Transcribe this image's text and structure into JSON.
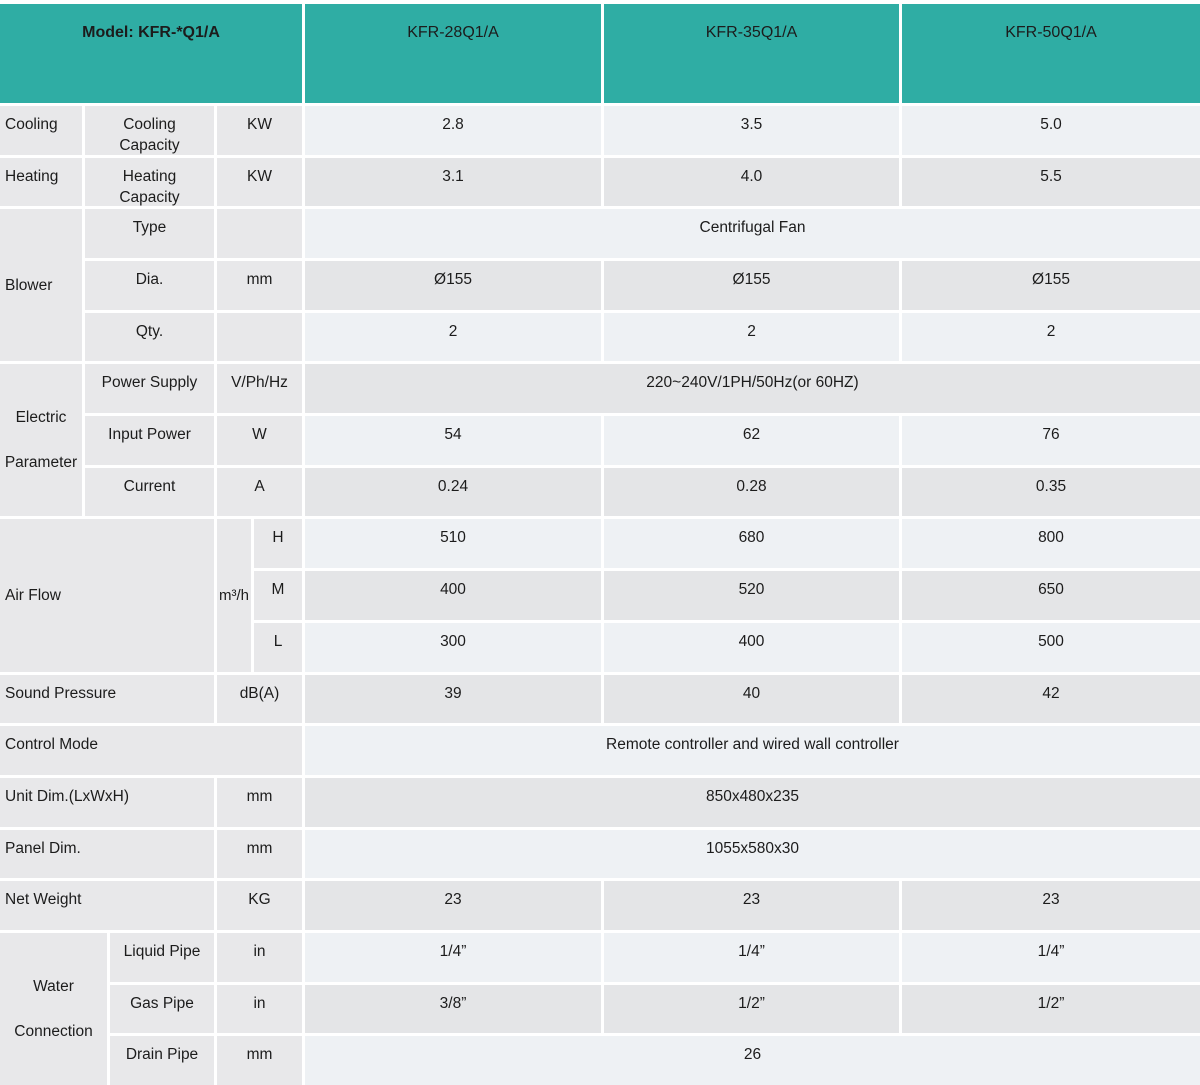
{
  "header": {
    "model_label": "Model: KFR-*Q1/A",
    "models": [
      "KFR-28Q1/A",
      "KFR-35Q1/A",
      "KFR-50Q1/A"
    ]
  },
  "rows": {
    "cooling": {
      "group": "Cooling",
      "label": "Cooling Capacity",
      "unit": "KW",
      "values": [
        "2.8",
        "3.5",
        "5.0"
      ]
    },
    "heating": {
      "group": "Heating",
      "label": "Heating Capacity",
      "unit": "KW",
      "values": [
        "3.1",
        "4.0",
        "5.5"
      ]
    },
    "blower": {
      "group": "Blower",
      "type": {
        "label": "Type",
        "value": "Centrifugal Fan"
      },
      "dia": {
        "label": "Dia.",
        "unit": "mm",
        "values": [
          "Ø155",
          "Ø155",
          "Ø155"
        ]
      },
      "qty": {
        "label": "Qty.",
        "values": [
          "2",
          "2",
          "2"
        ]
      }
    },
    "electric": {
      "group": "Electric Parameter",
      "power_supply": {
        "label": "Power Supply",
        "unit": "V/Ph/Hz",
        "value": "220~240V/1PH/50Hz(or 60HZ)"
      },
      "input_power": {
        "label": "Input Power",
        "unit": "W",
        "values": [
          "54",
          "62",
          "76"
        ]
      },
      "current": {
        "label": "Current",
        "unit": "A",
        "values": [
          "0.24",
          "0.28",
          "0.35"
        ]
      }
    },
    "air_flow": {
      "group": "Air Flow",
      "unit": "m³/h",
      "h": {
        "label": "H",
        "values": [
          "510",
          "680",
          "800"
        ]
      },
      "m": {
        "label": "M",
        "values": [
          "400",
          "520",
          "650"
        ]
      },
      "l": {
        "label": "L",
        "values": [
          "300",
          "400",
          "500"
        ]
      }
    },
    "sound_pressure": {
      "label": "Sound Pressure",
      "unit": "dB(A)",
      "values": [
        "39",
        "40",
        "42"
      ]
    },
    "control_mode": {
      "label": "Control Mode",
      "value": "Remote controller and wired wall controller"
    },
    "unit_dim": {
      "label": "Unit Dim.(LxWxH)",
      "unit": "mm",
      "value": "850x480x235"
    },
    "panel_dim": {
      "label": "Panel Dim.",
      "unit": "mm",
      "value": "1055x580x30"
    },
    "net_weight": {
      "label": "Net Weight",
      "unit": "KG",
      "values": [
        "23",
        "23",
        "23"
      ]
    },
    "water": {
      "group": "Water Connection",
      "liquid": {
        "label": "Liquid Pipe",
        "unit": "in",
        "values": [
          "1/4”",
          "1/4”",
          "1/4”"
        ]
      },
      "gas": {
        "label": "Gas Pipe",
        "unit": "in",
        "values": [
          "3/8”",
          "1/2”",
          "1/2”"
        ]
      },
      "drain": {
        "label": "Drain Pipe",
        "unit": "mm",
        "value": "26"
      }
    }
  },
  "colors": {
    "header_teal": "#2fada4",
    "label_bg": "#e8e8ea",
    "value_row_light": "#eef1f4",
    "value_row_dark": "#e4e5e7",
    "grid_lines": "#ffffff",
    "text": "#1c1c1c"
  }
}
